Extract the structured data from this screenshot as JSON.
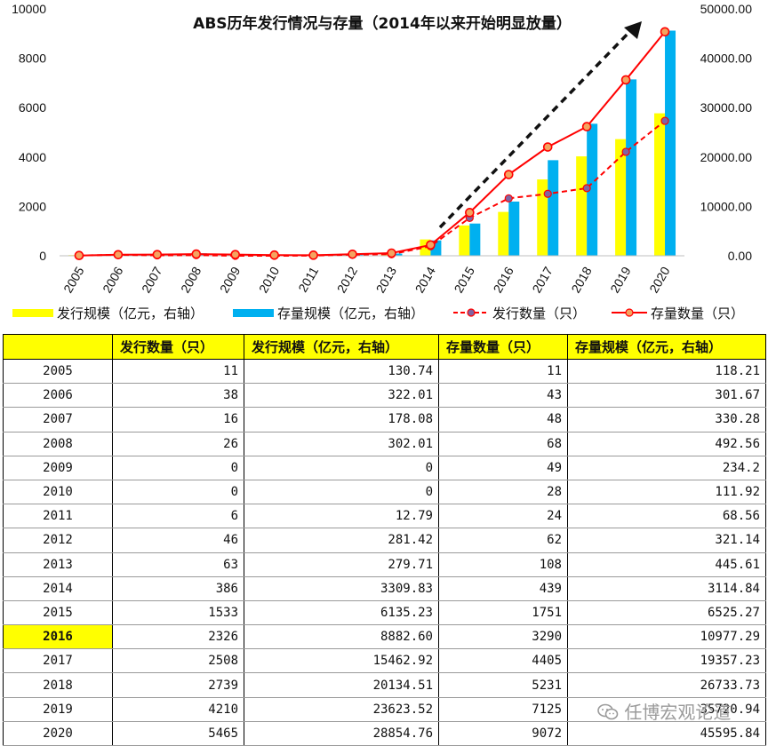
{
  "chart_data": {
    "type": "bar",
    "title": "ABS历年发行情况与存量（2014年以来开始明显放量）",
    "categories": [
      "2005",
      "2006",
      "2007",
      "2008",
      "2009",
      "2010",
      "2011",
      "2012",
      "2013",
      "2014",
      "2015",
      "2016",
      "2017",
      "2018",
      "2019",
      "2020"
    ],
    "left_axis": {
      "range": [
        0,
        10000
      ],
      "ticks": [
        "0",
        "2000",
        "4000",
        "6000",
        "8000",
        "10000"
      ]
    },
    "right_axis": {
      "range": [
        0,
        50000
      ],
      "ticks": [
        "0.00",
        "10000.00",
        "20000.00",
        "30000.00",
        "40000.00",
        "50000.00"
      ]
    },
    "series": [
      {
        "name": "发行规模（亿元，右轴）",
        "kind": "bar",
        "axis": "right",
        "color": "#ffff00",
        "values": [
          130.74,
          322.01,
          178.08,
          302.01,
          0,
          0,
          12.79,
          281.42,
          279.71,
          3309.83,
          6135.23,
          8882.6,
          15462.92,
          20134.51,
          23623.52,
          28854.76
        ]
      },
      {
        "name": "存量规模（亿元，右轴）",
        "kind": "bar",
        "axis": "right",
        "color": "#00b0f0",
        "values": [
          118.21,
          301.67,
          330.28,
          492.56,
          234.2,
          111.92,
          68.56,
          321.14,
          445.61,
          3114.84,
          6525.27,
          10977.29,
          19357.23,
          26733.73,
          35720.94,
          45595.84
        ]
      },
      {
        "name": "发行数量（只）",
        "kind": "line-dashed",
        "axis": "left",
        "color": "#ff0000",
        "values": [
          11,
          38,
          16,
          26,
          0,
          0,
          6,
          46,
          63,
          386,
          1533,
          2326,
          2508,
          2739,
          4210,
          5465
        ]
      },
      {
        "name": "存量数量（只）",
        "kind": "line",
        "axis": "left",
        "color": "#ff0000",
        "values": [
          11,
          43,
          48,
          68,
          49,
          28,
          24,
          62,
          108,
          439,
          1751,
          3290,
          4405,
          5231,
          7125,
          9072
        ]
      }
    ],
    "legend": "bottom",
    "grid": false
  },
  "table": {
    "headers": [
      "",
      "发行数量（只）",
      "发行规模（亿元，右轴）",
      "存量数量（只）",
      "存量规模（亿元，右轴）"
    ],
    "rows": [
      [
        "2005",
        "11",
        "130.74",
        "11",
        "118.21"
      ],
      [
        "2006",
        "38",
        "322.01",
        "43",
        "301.67"
      ],
      [
        "2007",
        "16",
        "178.08",
        "48",
        "330.28"
      ],
      [
        "2008",
        "26",
        "302.01",
        "68",
        "492.56"
      ],
      [
        "2009",
        "0",
        "0",
        "49",
        "234.2"
      ],
      [
        "2010",
        "0",
        "0",
        "28",
        "111.92"
      ],
      [
        "2011",
        "6",
        "12.79",
        "24",
        "68.56"
      ],
      [
        "2012",
        "46",
        "281.42",
        "62",
        "321.14"
      ],
      [
        "2013",
        "63",
        "279.71",
        "108",
        "445.61"
      ],
      [
        "2014",
        "386",
        "3309.83",
        "439",
        "3114.84"
      ],
      [
        "2015",
        "1533",
        "6135.23",
        "1751",
        "6525.27"
      ],
      [
        "2016",
        "2326",
        "8882.60",
        "3290",
        "10977.29"
      ],
      [
        "2017",
        "2508",
        "15462.92",
        "4405",
        "19357.23"
      ],
      [
        "2018",
        "2739",
        "20134.51",
        "5231",
        "26733.73"
      ],
      [
        "2019",
        "4210",
        "23623.52",
        "7125",
        "35720.94"
      ],
      [
        "2020",
        "5465",
        "28854.76",
        "9072",
        "45595.84"
      ]
    ],
    "highlight_row": "2016"
  },
  "watermark": "任博宏观论道"
}
